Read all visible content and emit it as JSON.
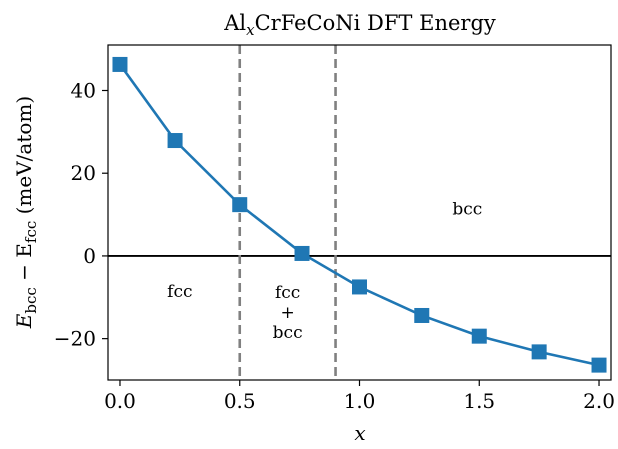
{
  "chart_data": {
    "type": "line",
    "title_main": "Al",
    "title_sub": "x",
    "title_rest": "CrFeCoNi DFT Energy",
    "xlabel": "x",
    "ylabel_pre": "E",
    "ylabel_sub1": "bcc",
    "ylabel_mid": " − E",
    "ylabel_sub2": "fcc",
    "ylabel_post": " (meV/atom)",
    "xlim": [
      -0.05,
      2.05
    ],
    "ylim": [
      -30,
      51
    ],
    "xticks": [
      0.0,
      0.5,
      1.0,
      1.5,
      2.0
    ],
    "xtick_labels": [
      "0.0",
      "0.5",
      "1.0",
      "1.5",
      "2.0"
    ],
    "yticks": [
      -20,
      0,
      20,
      40
    ],
    "ytick_labels": [
      "−20",
      "0",
      "20",
      "40"
    ],
    "grid": false,
    "series": [
      {
        "color": "#1f77b4",
        "marker": "square",
        "x": [
          0.0,
          0.23,
          0.5,
          0.76,
          1.0,
          1.26,
          1.5,
          1.75,
          2.0
        ],
        "y": [
          46.3,
          27.9,
          12.4,
          0.6,
          -7.5,
          -14.4,
          -19.4,
          -23.2,
          -26.4
        ]
      }
    ],
    "reference_lines": {
      "horizontal_y": 0,
      "vertical_x": [
        0.5,
        0.9
      ],
      "vertical_color": "#808080"
    },
    "annotations": [
      {
        "id": "fcc",
        "lines": [
          "fcc"
        ],
        "x": 0.25,
        "y": -8.5
      },
      {
        "id": "fcc-bcc",
        "lines": [
          "fcc",
          "+",
          "bcc"
        ],
        "x": 0.7,
        "y": -13.5
      },
      {
        "id": "bcc",
        "lines": [
          "bcc"
        ],
        "x": 1.45,
        "y": 11.5
      }
    ]
  }
}
